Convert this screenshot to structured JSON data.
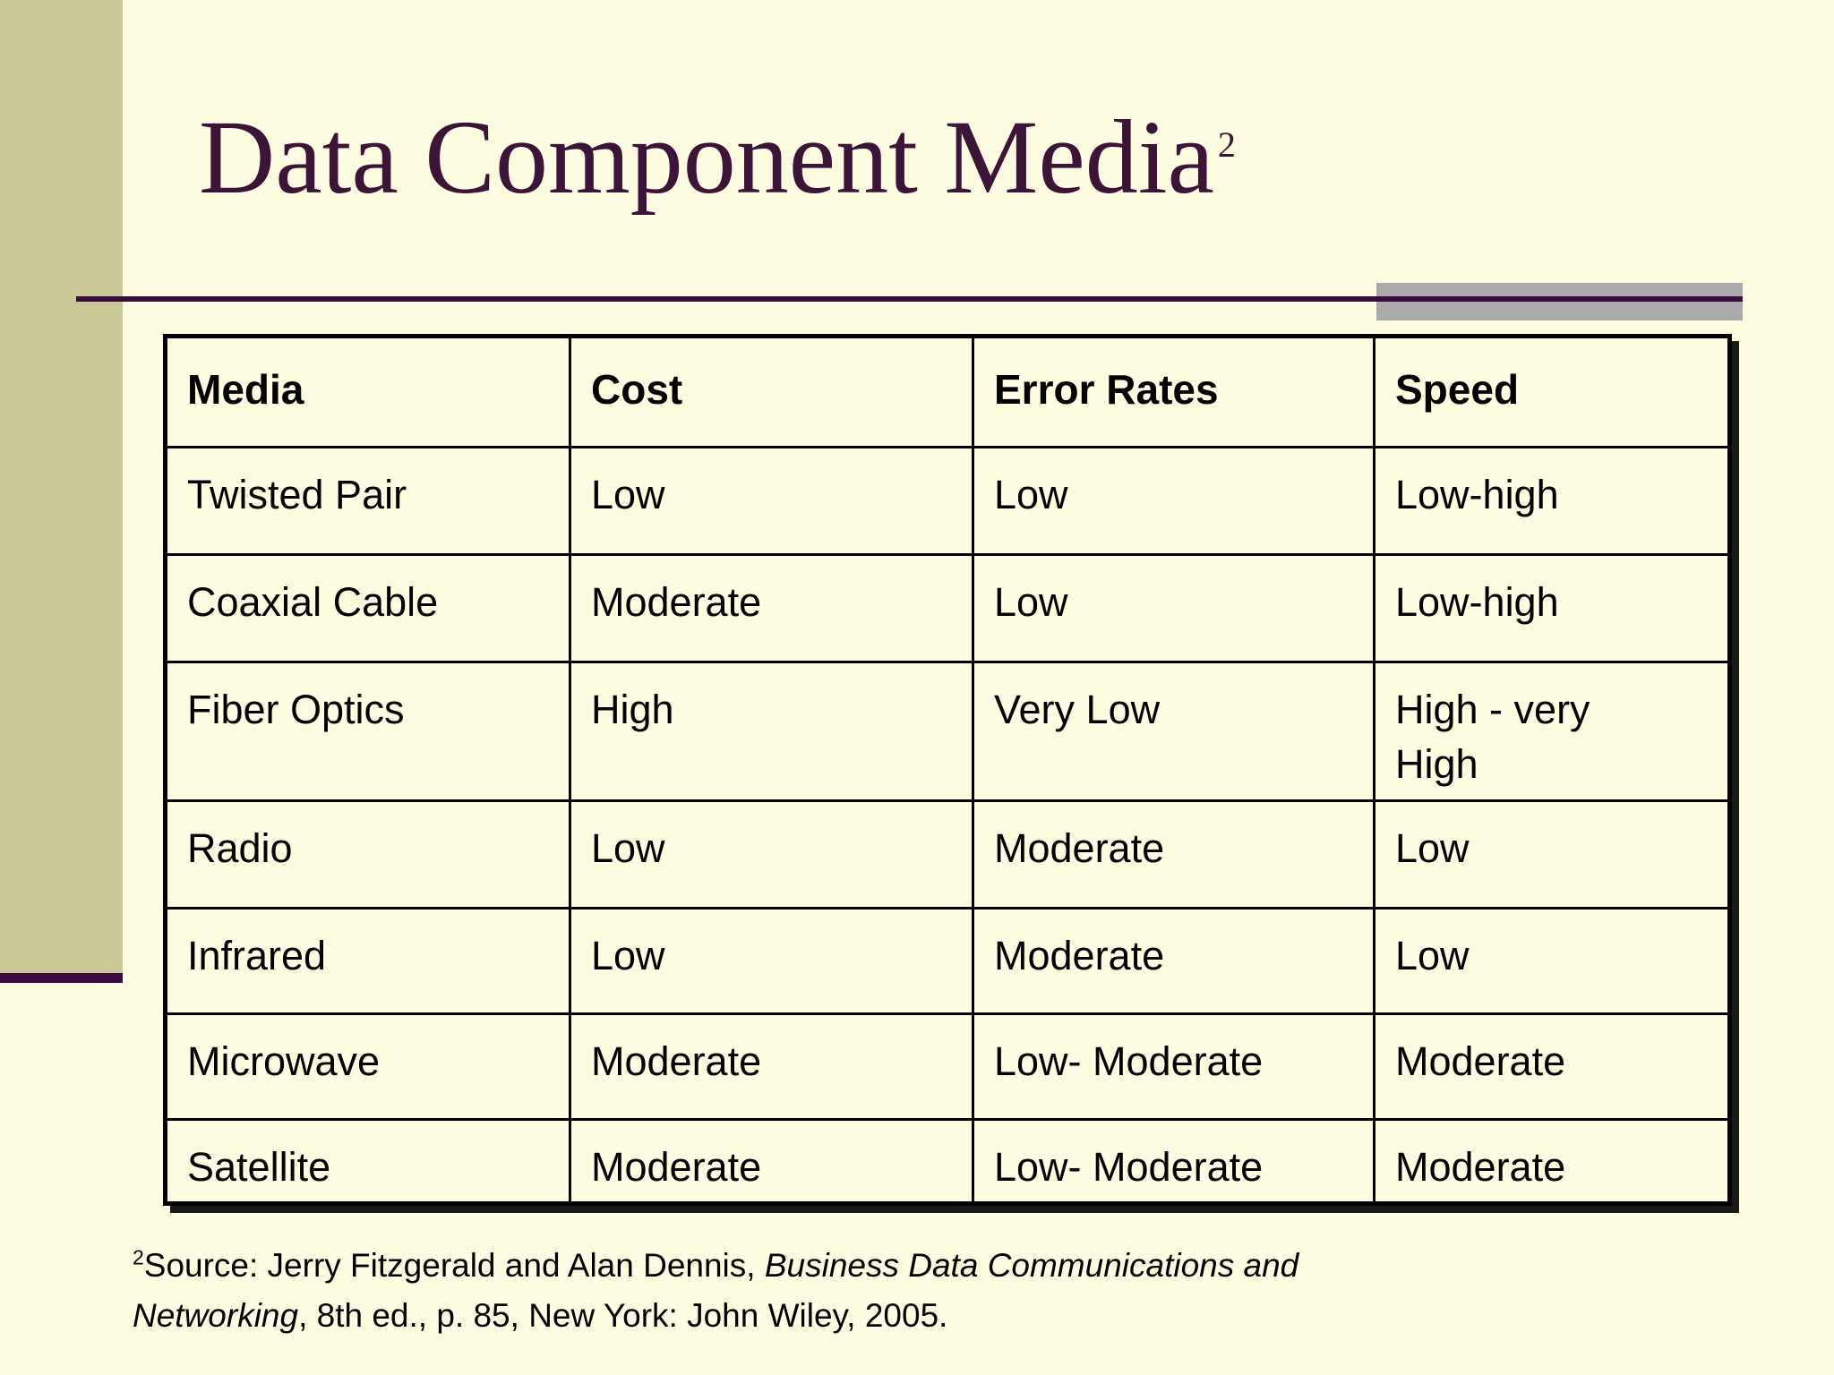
{
  "slide": {
    "title": {
      "text": "Data Component Media",
      "footnote_ref": "2"
    },
    "table": {
      "headers": [
        "Media",
        "Cost",
        "Error Rates",
        "Speed"
      ],
      "rows": [
        [
          "Twisted Pair",
          "Low",
          "Low",
          "Low-high"
        ],
        [
          "Coaxial Cable",
          "Moderate",
          "Low",
          "Low-high"
        ],
        [
          "Fiber Optics",
          "High",
          "Very Low",
          "High - very\nHigh"
        ],
        [
          "Radio",
          "Low",
          "Moderate",
          "Low"
        ],
        [
          "Infrared",
          "Low",
          "Moderate",
          "Low"
        ],
        [
          "Microwave",
          "Moderate",
          "Low- Moderate",
          "Moderate"
        ],
        [
          "Satellite",
          "Moderate",
          "Low- Moderate",
          "Moderate"
        ]
      ]
    },
    "footer": {
      "footnote_ref": "2",
      "line1_regular": "Source: Jerry Fitzgerald and Alan Dennis, ",
      "line1_italic": "Business Data Communications and",
      "line2_italic": "Networking",
      "line2_regular": ", 8th ed., p. 85, New York: John Wiley, 2005."
    },
    "colors": {
      "background": "#FFFDE1",
      "sidebar_band": "#CBC99A",
      "accent_purple": "#3A0C40",
      "title_text": "#3C1437",
      "gray_box": "#ABAAAB",
      "table_border": "#000000",
      "body_text": "#000000"
    }
  }
}
